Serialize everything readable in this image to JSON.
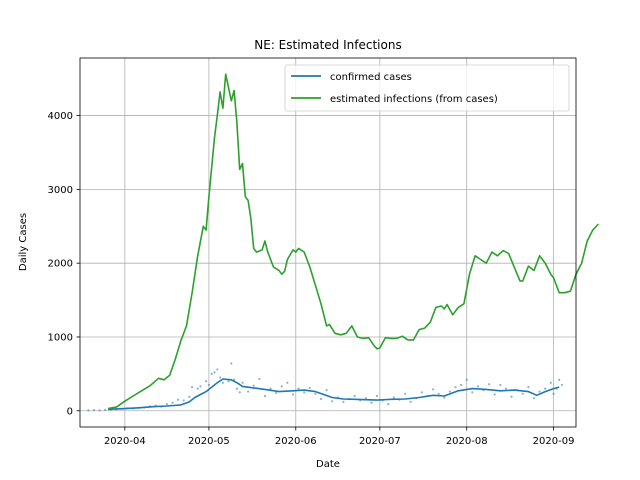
{
  "chart_data": {
    "type": "line",
    "title": "NE: Estimated Infections",
    "xlabel": "Date",
    "ylabel": "Daily Cases",
    "x_range": [
      "2020-03-16",
      "2020-09-09"
    ],
    "ylim": [
      -220,
      4780
    ],
    "grid": true,
    "legend_position": "upper-right",
    "x_ticks": [
      {
        "date": "2020-04-01",
        "label": "2020-04"
      },
      {
        "date": "2020-05-01",
        "label": "2020-05"
      },
      {
        "date": "2020-06-01",
        "label": "2020-06"
      },
      {
        "date": "2020-07-01",
        "label": "2020-07"
      },
      {
        "date": "2020-08-01",
        "label": "2020-08"
      },
      {
        "date": "2020-09-01",
        "label": "2020-09"
      }
    ],
    "y_ticks": [
      0,
      1000,
      2000,
      3000,
      4000
    ],
    "series": [
      {
        "name": "confirmed cases",
        "color": "#1f77b4",
        "kind": "line",
        "points": [
          [
            "2020-03-26",
            20
          ],
          [
            "2020-04-01",
            30
          ],
          [
            "2020-04-06",
            40
          ],
          [
            "2020-04-11",
            55
          ],
          [
            "2020-04-16",
            65
          ],
          [
            "2020-04-21",
            80
          ],
          [
            "2020-04-24",
            120
          ],
          [
            "2020-04-26",
            180
          ],
          [
            "2020-04-28",
            220
          ],
          [
            "2020-04-30",
            260
          ],
          [
            "2020-05-02",
            320
          ],
          [
            "2020-05-04",
            380
          ],
          [
            "2020-05-06",
            430
          ],
          [
            "2020-05-09",
            420
          ],
          [
            "2020-05-11",
            380
          ],
          [
            "2020-05-13",
            330
          ],
          [
            "2020-05-17",
            310
          ],
          [
            "2020-05-21",
            290
          ],
          [
            "2020-05-26",
            260
          ],
          [
            "2020-05-31",
            270
          ],
          [
            "2020-06-04",
            280
          ],
          [
            "2020-06-08",
            260
          ],
          [
            "2020-06-11",
            220
          ],
          [
            "2020-06-14",
            180
          ],
          [
            "2020-06-18",
            160
          ],
          [
            "2020-06-22",
            155
          ],
          [
            "2020-06-26",
            150
          ],
          [
            "2020-06-30",
            145
          ],
          [
            "2020-07-05",
            155
          ],
          [
            "2020-07-10",
            160
          ],
          [
            "2020-07-15",
            180
          ],
          [
            "2020-07-20",
            210
          ],
          [
            "2020-07-24",
            200
          ],
          [
            "2020-07-29",
            270
          ],
          [
            "2020-08-03",
            300
          ],
          [
            "2020-08-08",
            290
          ],
          [
            "2020-08-13",
            270
          ],
          [
            "2020-08-18",
            280
          ],
          [
            "2020-08-23",
            260
          ],
          [
            "2020-08-26",
            210
          ],
          [
            "2020-08-29",
            260
          ],
          [
            "2020-09-01",
            300
          ],
          [
            "2020-09-03",
            320
          ]
        ]
      },
      {
        "name": "estimated infections (from cases)",
        "color": "#2ca02c",
        "kind": "line",
        "points": [
          [
            "2020-03-26",
            30
          ],
          [
            "2020-03-29",
            50
          ],
          [
            "2020-04-01",
            130
          ],
          [
            "2020-04-04",
            200
          ],
          [
            "2020-04-07",
            270
          ],
          [
            "2020-04-10",
            340
          ],
          [
            "2020-04-13",
            440
          ],
          [
            "2020-04-15",
            420
          ],
          [
            "2020-04-17",
            480
          ],
          [
            "2020-04-19",
            700
          ],
          [
            "2020-04-21",
            950
          ],
          [
            "2020-04-23",
            1150
          ],
          [
            "2020-04-25",
            1600
          ],
          [
            "2020-04-27",
            2100
          ],
          [
            "2020-04-29",
            2500
          ],
          [
            "2020-04-30",
            2450
          ],
          [
            "2020-05-01",
            2900
          ],
          [
            "2020-05-02",
            3300
          ],
          [
            "2020-05-03",
            3700
          ],
          [
            "2020-05-04",
            4000
          ],
          [
            "2020-05-05",
            4320
          ],
          [
            "2020-05-06",
            4100
          ],
          [
            "2020-05-07",
            4560
          ],
          [
            "2020-05-09",
            4200
          ],
          [
            "2020-05-10",
            4340
          ],
          [
            "2020-05-11",
            3900
          ],
          [
            "2020-05-12",
            3270
          ],
          [
            "2020-05-13",
            3350
          ],
          [
            "2020-05-14",
            2900
          ],
          [
            "2020-05-15",
            2850
          ],
          [
            "2020-05-16",
            2600
          ],
          [
            "2020-05-17",
            2200
          ],
          [
            "2020-05-18",
            2150
          ],
          [
            "2020-05-20",
            2180
          ],
          [
            "2020-05-21",
            2300
          ],
          [
            "2020-05-22",
            2150
          ],
          [
            "2020-05-24",
            1950
          ],
          [
            "2020-05-26",
            1900
          ],
          [
            "2020-05-27",
            1850
          ],
          [
            "2020-05-28",
            1890
          ],
          [
            "2020-05-29",
            2050
          ],
          [
            "2020-05-31",
            2180
          ],
          [
            "2020-06-01",
            2150
          ],
          [
            "2020-06-02",
            2200
          ],
          [
            "2020-06-04",
            2150
          ],
          [
            "2020-06-06",
            1950
          ],
          [
            "2020-06-08",
            1700
          ],
          [
            "2020-06-10",
            1450
          ],
          [
            "2020-06-12",
            1150
          ],
          [
            "2020-06-13",
            1170
          ],
          [
            "2020-06-15",
            1050
          ],
          [
            "2020-06-17",
            1030
          ],
          [
            "2020-06-19",
            1050
          ],
          [
            "2020-06-21",
            1150
          ],
          [
            "2020-06-23",
            1000
          ],
          [
            "2020-06-25",
            980
          ],
          [
            "2020-06-27",
            990
          ],
          [
            "2020-06-29",
            880
          ],
          [
            "2020-06-30",
            840
          ],
          [
            "2020-07-01",
            850
          ],
          [
            "2020-07-03",
            990
          ],
          [
            "2020-07-05",
            980
          ],
          [
            "2020-07-07",
            980
          ],
          [
            "2020-07-09",
            1010
          ],
          [
            "2020-07-11",
            960
          ],
          [
            "2020-07-13",
            960
          ],
          [
            "2020-07-15",
            1100
          ],
          [
            "2020-07-17",
            1120
          ],
          [
            "2020-07-19",
            1200
          ],
          [
            "2020-07-21",
            1400
          ],
          [
            "2020-07-23",
            1420
          ],
          [
            "2020-07-24",
            1380
          ],
          [
            "2020-07-25",
            1440
          ],
          [
            "2020-07-27",
            1300
          ],
          [
            "2020-07-29",
            1400
          ],
          [
            "2020-07-31",
            1450
          ],
          [
            "2020-08-02",
            1850
          ],
          [
            "2020-08-04",
            2100
          ],
          [
            "2020-08-06",
            2050
          ],
          [
            "2020-08-08",
            2000
          ],
          [
            "2020-08-10",
            2150
          ],
          [
            "2020-08-12",
            2100
          ],
          [
            "2020-08-14",
            2170
          ],
          [
            "2020-08-16",
            2130
          ],
          [
            "2020-08-18",
            1940
          ],
          [
            "2020-08-20",
            1760
          ],
          [
            "2020-08-21",
            1760
          ],
          [
            "2020-08-23",
            1960
          ],
          [
            "2020-08-25",
            1900
          ],
          [
            "2020-08-27",
            2100
          ],
          [
            "2020-08-29",
            2000
          ],
          [
            "2020-08-31",
            1850
          ],
          [
            "2020-09-01",
            1800
          ],
          [
            "2020-09-03",
            1600
          ],
          [
            "2020-09-05",
            1600
          ],
          [
            "2020-09-07",
            1620
          ],
          [
            "2020-09-09",
            1850
          ],
          [
            "2020-09-11",
            2000
          ],
          [
            "2020-09-13",
            2300
          ],
          [
            "2020-09-15",
            2450
          ],
          [
            "2020-09-17",
            2530
          ]
        ]
      }
    ],
    "daily_reported_points": {
      "color": "#1f77b4",
      "kind": "scatter",
      "points": [
        [
          "2020-03-19",
          5
        ],
        [
          "2020-03-21",
          8
        ],
        [
          "2020-03-23",
          6
        ],
        [
          "2020-03-25",
          12
        ],
        [
          "2020-03-27",
          15
        ],
        [
          "2020-03-29",
          20
        ],
        [
          "2020-03-31",
          25
        ],
        [
          "2020-04-02",
          35
        ],
        [
          "2020-04-04",
          30
        ],
        [
          "2020-04-06",
          40
        ],
        [
          "2020-04-08",
          45
        ],
        [
          "2020-04-10",
          60
        ],
        [
          "2020-04-12",
          70
        ],
        [
          "2020-04-14",
          55
        ],
        [
          "2020-04-16",
          90
        ],
        [
          "2020-04-18",
          110
        ],
        [
          "2020-04-20",
          150
        ],
        [
          "2020-04-22",
          140
        ],
        [
          "2020-04-24",
          190
        ],
        [
          "2020-04-25",
          320
        ],
        [
          "2020-04-27",
          300
        ],
        [
          "2020-04-28",
          330
        ],
        [
          "2020-04-30",
          400
        ],
        [
          "2020-05-01",
          350
        ],
        [
          "2020-05-02",
          500
        ],
        [
          "2020-05-03",
          520
        ],
        [
          "2020-05-04",
          560
        ],
        [
          "2020-05-05",
          450
        ],
        [
          "2020-05-06",
          380
        ],
        [
          "2020-05-08",
          400
        ],
        [
          "2020-05-09",
          640
        ],
        [
          "2020-05-10",
          420
        ],
        [
          "2020-05-11",
          300
        ],
        [
          "2020-05-12",
          250
        ],
        [
          "2020-05-13",
          380
        ],
        [
          "2020-05-15",
          260
        ],
        [
          "2020-05-17",
          340
        ],
        [
          "2020-05-19",
          430
        ],
        [
          "2020-05-21",
          200
        ],
        [
          "2020-05-23",
          300
        ],
        [
          "2020-05-25",
          240
        ],
        [
          "2020-05-27",
          330
        ],
        [
          "2020-05-29",
          380
        ],
        [
          "2020-05-31",
          220
        ],
        [
          "2020-06-02",
          300
        ],
        [
          "2020-06-04",
          250
        ],
        [
          "2020-06-06",
          310
        ],
        [
          "2020-06-08",
          230
        ],
        [
          "2020-06-10",
          160
        ],
        [
          "2020-06-12",
          280
        ],
        [
          "2020-06-14",
          130
        ],
        [
          "2020-06-16",
          180
        ],
        [
          "2020-06-18",
          120
        ],
        [
          "2020-06-20",
          160
        ],
        [
          "2020-06-22",
          200
        ],
        [
          "2020-06-24",
          140
        ],
        [
          "2020-06-26",
          170
        ],
        [
          "2020-06-28",
          110
        ],
        [
          "2020-06-30",
          200
        ],
        [
          "2020-07-02",
          140
        ],
        [
          "2020-07-04",
          90
        ],
        [
          "2020-07-06",
          180
        ],
        [
          "2020-07-08",
          150
        ],
        [
          "2020-07-10",
          230
        ],
        [
          "2020-07-12",
          120
        ],
        [
          "2020-07-14",
          170
        ],
        [
          "2020-07-16",
          250
        ],
        [
          "2020-07-18",
          200
        ],
        [
          "2020-07-20",
          290
        ],
        [
          "2020-07-22",
          230
        ],
        [
          "2020-07-24",
          180
        ],
        [
          "2020-07-26",
          260
        ],
        [
          "2020-07-28",
          320
        ],
        [
          "2020-07-30",
          350
        ],
        [
          "2020-08-01",
          420
        ],
        [
          "2020-08-03",
          250
        ],
        [
          "2020-08-05",
          330
        ],
        [
          "2020-08-07",
          280
        ],
        [
          "2020-08-09",
          360
        ],
        [
          "2020-08-11",
          220
        ],
        [
          "2020-08-13",
          350
        ],
        [
          "2020-08-15",
          300
        ],
        [
          "2020-08-17",
          190
        ],
        [
          "2020-08-19",
          280
        ],
        [
          "2020-08-21",
          230
        ],
        [
          "2020-08-23",
          320
        ],
        [
          "2020-08-25",
          170
        ],
        [
          "2020-08-27",
          260
        ],
        [
          "2020-08-29",
          300
        ],
        [
          "2020-08-31",
          380
        ],
        [
          "2020-09-01",
          230
        ],
        [
          "2020-09-02",
          300
        ],
        [
          "2020-09-03",
          420
        ],
        [
          "2020-09-04",
          350
        ]
      ]
    }
  }
}
